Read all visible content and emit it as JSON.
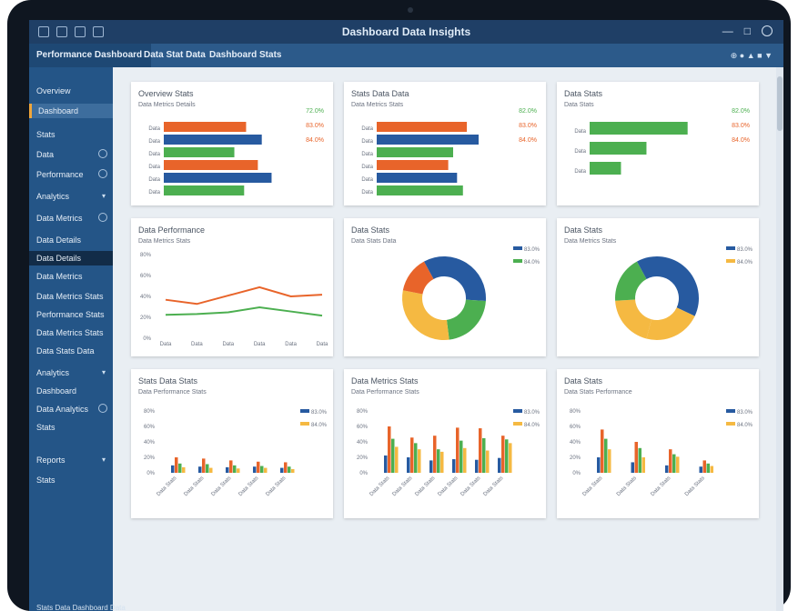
{
  "window": {
    "title": "Dashboard Data Insights"
  },
  "tabs": [
    {
      "label": "Performance Dashboard"
    },
    {
      "label": "Data Stat Data"
    },
    {
      "label": "Dashboard Stats"
    }
  ],
  "toolbar": {
    "tools": [
      "⊕ ● ▲ ■ ▼"
    ]
  },
  "sidebar": {
    "items": [
      {
        "label": "Overview"
      },
      {
        "label": "Dashboard"
      },
      {
        "label": "Stats"
      },
      {
        "label": "Data"
      },
      {
        "label": "Performance"
      },
      {
        "label": "Analytics"
      },
      {
        "label": "Data Metrics"
      },
      {
        "label": "Data Details"
      },
      {
        "label": "Data Details"
      },
      {
        "label": "Data Metrics"
      },
      {
        "label": "Data Metrics Stats"
      },
      {
        "label": "Performance Stats"
      },
      {
        "label": "Data Metrics Stats"
      },
      {
        "label": "Data Stats Data"
      },
      {
        "label": "Analytics"
      },
      {
        "label": "Dashboard"
      },
      {
        "label": "Data Analytics"
      },
      {
        "label": "Stats"
      },
      {
        "label": "Reports"
      },
      {
        "label": "Stats"
      }
    ],
    "footer": "Stats Data Dashboard Data"
  },
  "cards": [
    {
      "title": "Overview Stats",
      "subtitle": "Data Metrics Details"
    },
    {
      "title": "Stats Data Data",
      "subtitle": "Data Metrics Stats"
    },
    {
      "title": "Data Stats",
      "subtitle": "Data Stats"
    },
    {
      "title": "Data Performance",
      "subtitle": "Data Metrics Stats"
    },
    {
      "title": "Data Stats",
      "subtitle": "Data Stats Data"
    },
    {
      "title": "Data Stats",
      "subtitle": "Data Metrics Stats"
    },
    {
      "title": "Stats Data Stats",
      "subtitle": "Data Performance Stats"
    },
    {
      "title": "Data Metrics Stats",
      "subtitle": "Data Performance Stats"
    },
    {
      "title": "Data Stats",
      "subtitle": "Data Stats Performance"
    }
  ],
  "colors": {
    "orange": "#e8642a",
    "blue": "#275aa0",
    "green": "#4caf50",
    "yellow": "#f5b942",
    "titlebar": "#1f3f66",
    "sidebar": "#245587"
  },
  "chart_data": [
    {
      "type": "bar",
      "orientation": "horizontal",
      "categories": [
        "Data",
        "Data",
        "Data",
        "Data",
        "Data",
        "Data"
      ],
      "values": [
        84,
        100,
        72,
        96,
        110,
        82
      ],
      "xlim": [
        0,
        130
      ],
      "legend": [
        "72.0%",
        "83.0%",
        "84.0%"
      ]
    },
    {
      "type": "bar",
      "orientation": "horizontal",
      "categories": [
        "Data",
        "Data",
        "Data",
        "Data",
        "Data",
        "Data"
      ],
      "values": [
        92,
        104,
        78,
        73,
        82,
        88
      ],
      "xlim": [
        0,
        130
      ],
      "legend": [
        "82.0%",
        "83.0%",
        "84.0%"
      ]
    },
    {
      "type": "bar",
      "orientation": "horizontal",
      "categories": [
        "Data",
        "Data",
        "Data"
      ],
      "values": [
        100,
        58,
        32
      ],
      "xlim": [
        0,
        130
      ],
      "legend": [
        "82.0%",
        "83.0%",
        "84.0%"
      ]
    },
    {
      "type": "line",
      "x": [
        "Data",
        "Data",
        "Data",
        "Data",
        "Data",
        "Data"
      ],
      "series": [
        {
          "values": [
            46,
            41,
            51,
            61,
            50,
            52
          ]
        },
        {
          "values": [
            28,
            29,
            31,
            37,
            32,
            27
          ]
        }
      ],
      "ylim": [
        0,
        100
      ],
      "yticks": [
        "80%",
        "60%",
        "40%",
        "20%",
        "0%"
      ]
    },
    {
      "type": "pie",
      "donut": true,
      "values": [
        34,
        22,
        30,
        14
      ],
      "legend": [
        "83.0%",
        "84.0%"
      ]
    },
    {
      "type": "pie",
      "donut": true,
      "values": [
        40,
        22,
        20,
        18
      ],
      "legend": [
        "83.0%",
        "84.0%"
      ]
    },
    {
      "type": "bar",
      "categories": [
        "Data Stats",
        "Data Stats",
        "Data Stats",
        "Data Stats",
        "Data Stats"
      ],
      "series": [
        {
          "values": [
            12,
            10,
            9,
            10,
            8
          ]
        },
        {
          "values": [
            25,
            23,
            20,
            18,
            17
          ]
        },
        {
          "values": [
            15,
            14,
            12,
            11,
            10
          ]
        },
        {
          "values": [
            9,
            8,
            7,
            8,
            6
          ]
        }
      ],
      "ylim": [
        0,
        100
      ],
      "yticks": [
        "80%",
        "60%",
        "40%",
        "20%",
        "0%"
      ],
      "legend": [
        "83.0%",
        "84.0%"
      ]
    },
    {
      "type": "bar",
      "categories": [
        "Data Stats",
        "Data Stats",
        "Data Stats",
        "Data Stats",
        "Data Stats",
        "Data Stats"
      ],
      "series": [
        {
          "values": [
            28,
            25,
            20,
            22,
            21,
            24
          ]
        },
        {
          "values": [
            75,
            57,
            60,
            73,
            72,
            60
          ]
        },
        {
          "values": [
            55,
            48,
            38,
            52,
            56,
            54
          ]
        },
        {
          "values": [
            42,
            38,
            34,
            40,
            36,
            48
          ]
        }
      ],
      "ylim": [
        0,
        100
      ],
      "yticks": [
        "80%",
        "60%",
        "40%",
        "20%",
        "0%"
      ],
      "legend": [
        "83.0%",
        "84.0%"
      ]
    },
    {
      "type": "bar",
      "categories": [
        "Data Stats",
        "Data Stats",
        "Data Stats",
        "Data Stats"
      ],
      "series": [
        {
          "values": [
            25,
            17,
            12,
            10
          ]
        },
        {
          "values": [
            70,
            50,
            38,
            20
          ]
        },
        {
          "values": [
            55,
            40,
            30,
            15
          ]
        },
        {
          "values": [
            38,
            25,
            26,
            11
          ]
        }
      ],
      "ylim": [
        0,
        100
      ],
      "yticks": [
        "80%",
        "60%",
        "40%",
        "20%",
        "0%"
      ],
      "legend": [
        "83.0%",
        "84.0%"
      ]
    }
  ]
}
